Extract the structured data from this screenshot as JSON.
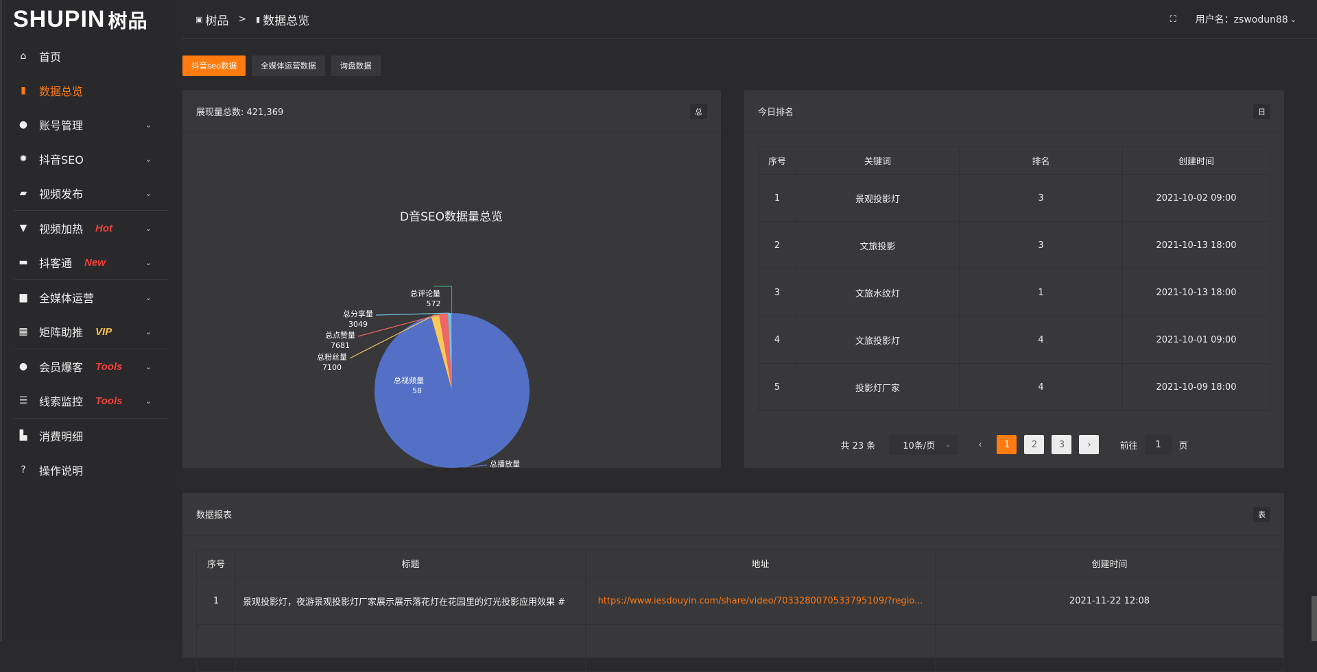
{
  "logo": {
    "text": "SHUPIN",
    "cn": "树品"
  },
  "sidebar": {
    "items": [
      {
        "label": "首页",
        "icon": "home-icon",
        "glyph": "⌂"
      },
      {
        "label": "数据总览",
        "icon": "bar-chart-icon",
        "glyph": "▮",
        "active": true
      },
      {
        "label": "账号管理",
        "icon": "user-icon",
        "glyph": "●",
        "chev": true
      },
      {
        "label": "抖音SEO",
        "icon": "gear-icon",
        "glyph": "✹",
        "chev": true
      },
      {
        "label": "视频发布",
        "icon": "camera-icon",
        "glyph": "▰",
        "chev": true,
        "divider": true
      },
      {
        "label": "视频加热",
        "icon": "brush-icon",
        "glyph": "▼",
        "badge": "Hot",
        "badge_color": "#f0423c",
        "chev": true
      },
      {
        "label": "抖客通",
        "icon": "message-icon",
        "glyph": "▬",
        "badge": "New",
        "badge_color": "#f0423c",
        "chev": true,
        "divider": true
      },
      {
        "label": "全媒体运营",
        "icon": "monitor-icon",
        "glyph": "▆",
        "chev": true
      },
      {
        "label": "矩阵助推",
        "icon": "grid-icon",
        "glyph": "▦",
        "badge": "VIP",
        "badge_color": "#f5c04a",
        "chev": true,
        "divider": true
      },
      {
        "label": "会员爆客",
        "icon": "user-icon",
        "glyph": "●",
        "badge": "Tools",
        "badge_color": "#f0423c",
        "chev": true
      },
      {
        "label": "线索监控",
        "icon": "sliders-icon",
        "glyph": "☰",
        "badge": "Tools",
        "badge_color": "#f0423c",
        "chev": true,
        "divider": true
      },
      {
        "label": "消费明细",
        "icon": "wallet-icon",
        "glyph": "▙"
      },
      {
        "label": "操作说明",
        "icon": "help-icon",
        "glyph": "?"
      }
    ]
  },
  "header": {
    "crumb1": "树品",
    "sep": ">",
    "crumb2": "数据总览",
    "user_label": "用户名：zswodun88"
  },
  "tabs": [
    {
      "label": "抖音seo数据",
      "active": true
    },
    {
      "label": "全媒体运营数据"
    },
    {
      "label": "询盘数据"
    }
  ],
  "left_card": {
    "title": "展现量总数: 421,369",
    "tag": "总"
  },
  "chart_data": {
    "type": "pie",
    "title": "D音SEO数据量总览",
    "legend_position": "bottom",
    "slices": [
      {
        "name": "总播放量",
        "value": 402909,
        "color": "#5470c6"
      },
      {
        "name": "总视频量",
        "value": 58,
        "color": "#91cc75"
      },
      {
        "name": "总粉丝量",
        "value": 7100,
        "color": "#fac858"
      },
      {
        "name": "总点赞量",
        "value": 7681,
        "color": "#ee6666"
      },
      {
        "name": "总分享量",
        "value": 3049,
        "color": "#73c0de"
      },
      {
        "name": "总评论量",
        "value": 572,
        "color": "#3ba272"
      }
    ]
  },
  "right_card": {
    "title": "今日排名",
    "tag": "日",
    "columns": [
      "序号",
      "关键词",
      "排名",
      "创建时间"
    ],
    "rows": [
      [
        "1",
        "景观投影灯",
        "3",
        "2021-10-02 09:00"
      ],
      [
        "2",
        "文旅投影",
        "3",
        "2021-10-13 18:00"
      ],
      [
        "3",
        "文旅水纹灯",
        "1",
        "2021-10-13 18:00"
      ],
      [
        "4",
        "文旅投影灯",
        "4",
        "2021-10-01 09:00"
      ],
      [
        "5",
        "投影灯厂家",
        "4",
        "2021-10-09 18:00"
      ]
    ],
    "pager": {
      "total": "共 23 条",
      "size": "10条/页",
      "pages": [
        "1",
        "2",
        "3"
      ],
      "current": "1",
      "goto": "前往",
      "goto_value": "1",
      "page_unit": "页"
    }
  },
  "bottom_card": {
    "title": "数据报表",
    "tag": "表",
    "columns": [
      "序号",
      "标题",
      "地址",
      "创建时间"
    ],
    "rows": [
      [
        "1",
        "景观投影灯，夜游景观投影灯厂家展示展示落花灯在花园里的灯光投影应用效果 #",
        "https://www.iesdouyin.com/share/video/7033280070533795109/?regio...",
        "2021-11-22 12:08"
      ]
    ]
  }
}
